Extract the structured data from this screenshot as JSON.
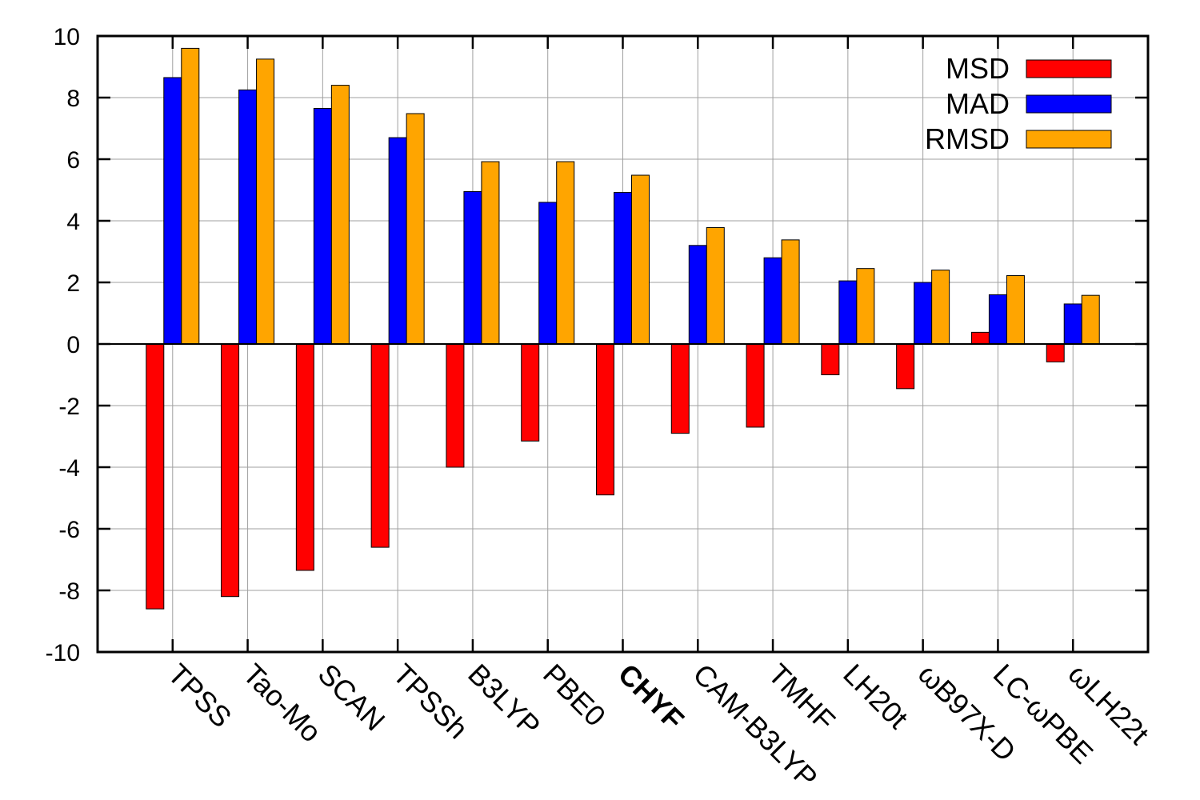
{
  "chart_data": {
    "type": "bar",
    "title": "",
    "xlabel": "",
    "ylabel": "",
    "ylim": [
      -10,
      10
    ],
    "yticks": [
      -10,
      -8,
      -6,
      -4,
      -2,
      0,
      2,
      4,
      6,
      8,
      10
    ],
    "grid": true,
    "legend_position": "top-right",
    "highlighted_category": "CHYF",
    "categories": [
      "TPSS",
      "Tao-Mo",
      "SCAN",
      "TPSSh",
      "B3LYP",
      "PBE0",
      "CHYF",
      "CAM-B3LYP",
      "TMHF",
      "LH20t",
      "ωB97X-D",
      "LC-ωPBE",
      "ωLH22t"
    ],
    "series": [
      {
        "name": "MSD",
        "color": "#ff0000",
        "values": [
          -8.6,
          -8.2,
          -7.35,
          -6.6,
          -4.0,
          -3.15,
          -4.9,
          -2.9,
          -2.7,
          -1.0,
          -1.45,
          0.38,
          -0.58
        ]
      },
      {
        "name": "MAD",
        "color": "#0000ff",
        "values": [
          8.65,
          8.25,
          7.65,
          6.7,
          4.95,
          4.6,
          4.92,
          3.2,
          2.8,
          2.05,
          2.0,
          1.6,
          1.3
        ]
      },
      {
        "name": "RMSD",
        "color": "#ffa500",
        "values": [
          9.6,
          9.25,
          8.4,
          7.48,
          5.92,
          5.92,
          5.48,
          3.78,
          3.38,
          2.45,
          2.4,
          2.22,
          1.58
        ]
      }
    ]
  }
}
